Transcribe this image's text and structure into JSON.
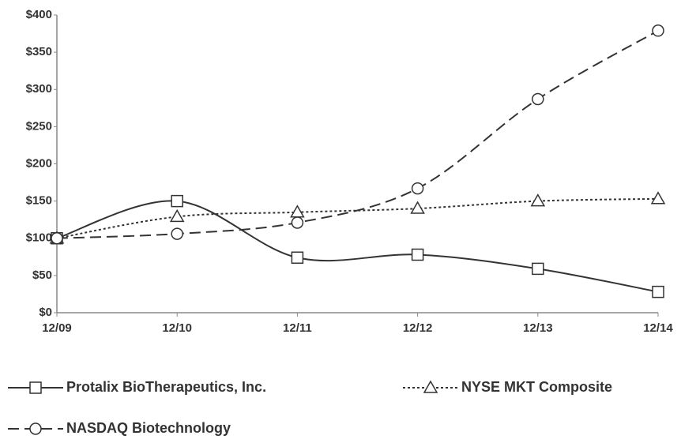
{
  "chart_data": {
    "type": "line",
    "categories": [
      "12/09",
      "12/10",
      "12/11",
      "12/12",
      "12/13",
      "12/14"
    ],
    "series": [
      {
        "name": "Protalix BioTherapeutics, Inc.",
        "color": "#333333",
        "marker": "square",
        "dash": "solid",
        "values": [
          100,
          150,
          74,
          78,
          59,
          28
        ]
      },
      {
        "name": "NYSE MKT Composite",
        "color": "#333333",
        "marker": "triangle",
        "dash": "dotted",
        "values": [
          100,
          129,
          135,
          140,
          150,
          153
        ]
      },
      {
        "name": "NASDAQ Biotechnology",
        "color": "#333333",
        "marker": "circle",
        "dash": "dashed",
        "values": [
          100,
          106,
          121,
          167,
          287,
          379
        ]
      }
    ],
    "ylim": [
      0,
      400
    ],
    "yticks": [
      {
        "value": 0,
        "label": "$0"
      },
      {
        "value": 50,
        "label": "$50"
      },
      {
        "value": 100,
        "label": "$100"
      },
      {
        "value": 150,
        "label": "$150"
      },
      {
        "value": 200,
        "label": "$200"
      },
      {
        "value": 250,
        "label": "$250"
      },
      {
        "value": 300,
        "label": "$300"
      },
      {
        "value": 350,
        "label": "$350"
      },
      {
        "value": 400,
        "label": "$400"
      }
    ],
    "grid": false,
    "smooth": true,
    "legend": "bottom"
  }
}
